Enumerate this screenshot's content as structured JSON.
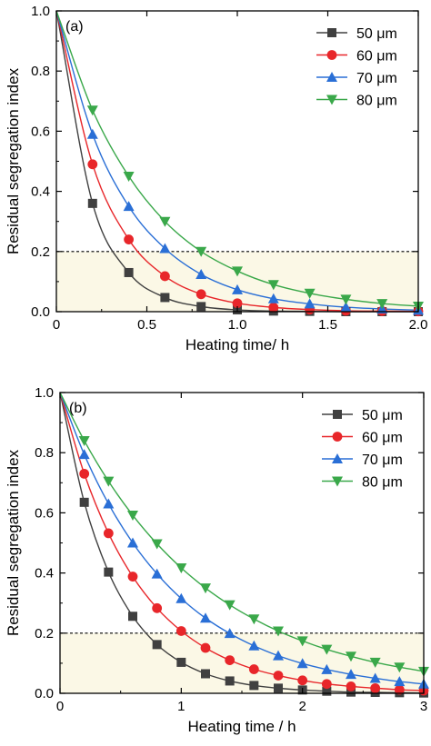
{
  "colors": {
    "50um": "#404040",
    "60um": "#e8262a",
    "70um": "#2a6fd6",
    "80um": "#3aa84a",
    "shade": "#fbf8e6",
    "threshold_line": "#000000"
  },
  "chart_data": [
    {
      "type": "line",
      "panel_label": "(a)",
      "xlabel": "Heating time/ h",
      "ylabel": "Residual segregation index",
      "xlim": [
        0,
        2.0
      ],
      "ylim": [
        0,
        1.0
      ],
      "xticks": [
        "0",
        "0.5",
        "1.0",
        "1.5",
        "2.0"
      ],
      "xtick_values": [
        0,
        0.5,
        1.0,
        1.5,
        2.0
      ],
      "yticks": [
        "0.0",
        "0.2",
        "0.4",
        "0.6",
        "0.8",
        "1.0"
      ],
      "ytick_values": [
        0,
        0.2,
        0.4,
        0.6,
        0.8,
        1.0
      ],
      "grid": false,
      "legend_position": "top-right",
      "threshold": 0.2,
      "shaded_below_threshold": true,
      "series": [
        {
          "name": "50 μm",
          "key": "50um",
          "marker": "square",
          "x": [
            0,
            0.2,
            0.4,
            0.6,
            0.8,
            1.0,
            1.2,
            1.4,
            1.6,
            1.8,
            2.0
          ],
          "y": [
            1.0,
            0.36,
            0.13,
            0.047,
            0.017,
            0.006,
            0.002,
            0.001,
            0.0,
            0.0,
            0.0
          ]
        },
        {
          "name": "60 μm",
          "key": "60um",
          "marker": "circle",
          "x": [
            0,
            0.2,
            0.4,
            0.6,
            0.8,
            1.0,
            1.2,
            1.4,
            1.6,
            1.8,
            2.0
          ],
          "y": [
            1.0,
            0.49,
            0.24,
            0.118,
            0.058,
            0.028,
            0.014,
            0.007,
            0.003,
            0.002,
            0.001
          ]
        },
        {
          "name": "70 μm",
          "key": "70um",
          "marker": "triangle-up",
          "x": [
            0,
            0.2,
            0.4,
            0.6,
            0.8,
            1.0,
            1.2,
            1.4,
            1.6,
            1.8,
            2.0
          ],
          "y": [
            1.0,
            0.59,
            0.35,
            0.21,
            0.124,
            0.073,
            0.043,
            0.026,
            0.015,
            0.009,
            0.005
          ]
        },
        {
          "name": "80 μm",
          "key": "80um",
          "marker": "triangle-down",
          "x": [
            0,
            0.2,
            0.4,
            0.6,
            0.8,
            1.0,
            1.2,
            1.4,
            1.6,
            1.8,
            2.0
          ],
          "y": [
            1.0,
            0.67,
            0.45,
            0.3,
            0.2,
            0.135,
            0.09,
            0.061,
            0.041,
            0.027,
            0.018
          ]
        }
      ]
    },
    {
      "type": "line",
      "panel_label": "(b)",
      "xlabel": "Heating time / h",
      "ylabel": "Residual segregation index",
      "xlim": [
        0,
        3
      ],
      "ylim": [
        0,
        1.0
      ],
      "xticks": [
        "0",
        "1",
        "2",
        "3"
      ],
      "xtick_values": [
        0,
        1,
        2,
        3
      ],
      "yticks": [
        "0.0",
        "0.2",
        "0.4",
        "0.6",
        "0.8",
        "1.0"
      ],
      "ytick_values": [
        0,
        0.2,
        0.4,
        0.6,
        0.8,
        1.0
      ],
      "grid": false,
      "legend_position": "top-right",
      "threshold": 0.2,
      "shaded_below_threshold": true,
      "series": [
        {
          "name": "50 μm",
          "key": "50um",
          "marker": "square",
          "x": [
            0,
            0.2,
            0.4,
            0.6,
            0.8,
            1.0,
            1.2,
            1.4,
            1.6,
            1.8,
            2.0,
            2.2,
            2.4,
            2.6,
            2.8,
            3.0
          ],
          "y": [
            1.0,
            0.635,
            0.403,
            0.256,
            0.162,
            0.103,
            0.065,
            0.041,
            0.026,
            0.017,
            0.011,
            0.007,
            0.004,
            0.003,
            0.002,
            0.001
          ]
        },
        {
          "name": "60 μm",
          "key": "60um",
          "marker": "circle",
          "x": [
            0,
            0.2,
            0.4,
            0.6,
            0.8,
            1.0,
            1.2,
            1.4,
            1.6,
            1.8,
            2.0,
            2.2,
            2.4,
            2.6,
            2.8,
            3.0
          ],
          "y": [
            1.0,
            0.73,
            0.532,
            0.388,
            0.283,
            0.207,
            0.151,
            0.11,
            0.08,
            0.059,
            0.043,
            0.031,
            0.023,
            0.017,
            0.012,
            0.009
          ]
        },
        {
          "name": "70 μm",
          "key": "70um",
          "marker": "triangle-up",
          "x": [
            0,
            0.2,
            0.4,
            0.6,
            0.8,
            1.0,
            1.2,
            1.4,
            1.6,
            1.8,
            2.0,
            2.2,
            2.4,
            2.6,
            2.8,
            3.0
          ],
          "y": [
            1.0,
            0.794,
            0.63,
            0.5,
            0.397,
            0.315,
            0.25,
            0.199,
            0.158,
            0.125,
            0.099,
            0.079,
            0.063,
            0.05,
            0.039,
            0.031
          ]
        },
        {
          "name": "80 μm",
          "key": "80um",
          "marker": "triangle-down",
          "x": [
            0,
            0.2,
            0.4,
            0.6,
            0.8,
            1.0,
            1.2,
            1.4,
            1.6,
            1.8,
            2.0,
            2.2,
            2.4,
            2.6,
            2.8,
            3.0
          ],
          "y": [
            1.0,
            0.84,
            0.705,
            0.592,
            0.497,
            0.417,
            0.35,
            0.294,
            0.247,
            0.207,
            0.174,
            0.146,
            0.123,
            0.103,
            0.087,
            0.073
          ]
        }
      ]
    }
  ]
}
